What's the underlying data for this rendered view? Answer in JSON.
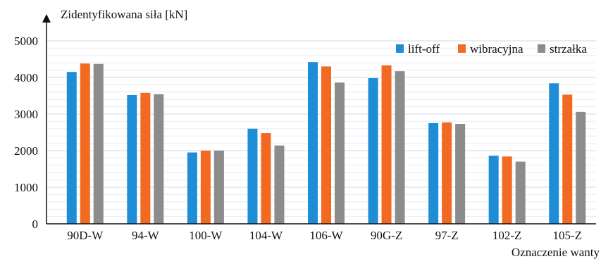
{
  "chart_data": {
    "type": "bar",
    "ylabel": "Zidentyfikowana siła [kN]",
    "xlabel": "Oznaczenie wanty",
    "ylim": [
      0,
      5000
    ],
    "yticks": [
      0,
      1000,
      2000,
      3000,
      4000,
      5000
    ],
    "grid": true,
    "legend_position": "top-right",
    "categories": [
      "90D-W",
      "94-W",
      "100-W",
      "104-W",
      "106-W",
      "90G-Z",
      "97-Z",
      "102-Z",
      "105-Z"
    ],
    "series": [
      {
        "name": "lift-off",
        "color": "#1f8dd6",
        "values": [
          4150,
          3520,
          1950,
          2600,
          4420,
          3980,
          2750,
          1860,
          3840
        ]
      },
      {
        "name": "wibracyjna",
        "color": "#f26a22",
        "values": [
          4380,
          3580,
          2000,
          2480,
          4300,
          4330,
          2770,
          1840,
          3530
        ]
      },
      {
        "name": "strzałka",
        "color": "#8c8c8c",
        "values": [
          4370,
          3540,
          2000,
          2140,
          3860,
          4170,
          2730,
          1700,
          3060
        ]
      }
    ]
  }
}
